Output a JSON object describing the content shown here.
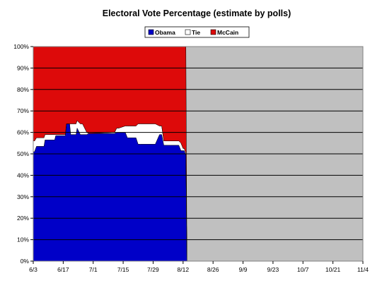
{
  "chart_data": {
    "type": "area",
    "title": "Electoral Vote Percentage (estimate by polls)",
    "xlabel": "",
    "ylabel": "",
    "x_tick_labels": [
      "6/3",
      "6/17",
      "7/1",
      "7/15",
      "7/29",
      "8/12",
      "8/26",
      "9/9",
      "9/23",
      "10/7",
      "10/21",
      "11/4"
    ],
    "y_tick_labels": [
      "0%",
      "10%",
      "20%",
      "30%",
      "40%",
      "50%",
      "60%",
      "70%",
      "80%",
      "90%",
      "100%"
    ],
    "ylim": [
      0,
      100
    ],
    "x_range_days": [
      0,
      154
    ],
    "stacked": true,
    "grid": "horizontal",
    "legend_position": "top",
    "unreported_region_color": "#c0c0c0",
    "x_days": [
      0,
      0.6,
      1.5,
      5,
      5.5,
      10,
      10.5,
      15,
      15.5,
      17,
      17.5,
      20,
      20.5,
      21,
      22,
      23,
      25,
      26,
      27,
      38,
      39,
      40,
      43,
      44,
      45,
      48,
      49,
      50,
      56,
      57,
      59,
      60,
      61,
      63,
      64,
      68,
      69,
      70,
      70.5,
      71.3,
      71.8
    ],
    "series": [
      {
        "name": "Obama",
        "color": "#0000c8",
        "values": [
          51,
          51,
          53.5,
          53.5,
          56.5,
          56.5,
          58.5,
          58.5,
          64,
          64,
          59,
          59,
          62,
          61,
          59,
          59,
          59,
          59.5,
          59.5,
          59.5,
          60,
          60,
          60,
          57.5,
          57.5,
          57.5,
          54.5,
          54.5,
          54.5,
          54.5,
          59,
          59,
          54,
          54,
          54,
          54,
          51.5,
          51.5,
          51.5,
          49.5,
          0
        ]
      },
      {
        "name": "Tie",
        "color": "#ffffff",
        "values": [
          5,
          5,
          4,
          4,
          2.5,
          2.5,
          0.5,
          0.5,
          0,
          0,
          5,
          5,
          3.5,
          4,
          5,
          5,
          1,
          0,
          0,
          0.5,
          2,
          2,
          3,
          5.5,
          5.5,
          5.5,
          9.5,
          9.5,
          9.5,
          9.5,
          4,
          4,
          2,
          2,
          2,
          2,
          3.5,
          1,
          1,
          1,
          0
        ]
      },
      {
        "name": "McCain",
        "color": "#dd0a0a",
        "values": [
          44,
          44,
          42.5,
          42.5,
          41,
          41,
          41,
          41,
          36,
          36,
          36,
          36,
          34.5,
          35,
          36,
          36,
          40,
          40.5,
          40.5,
          40,
          38,
          38,
          37,
          37,
          37,
          37,
          36,
          36,
          36,
          36,
          37,
          37,
          44,
          44,
          44,
          44,
          45,
          47.5,
          47.5,
          49.5,
          0
        ]
      }
    ]
  }
}
